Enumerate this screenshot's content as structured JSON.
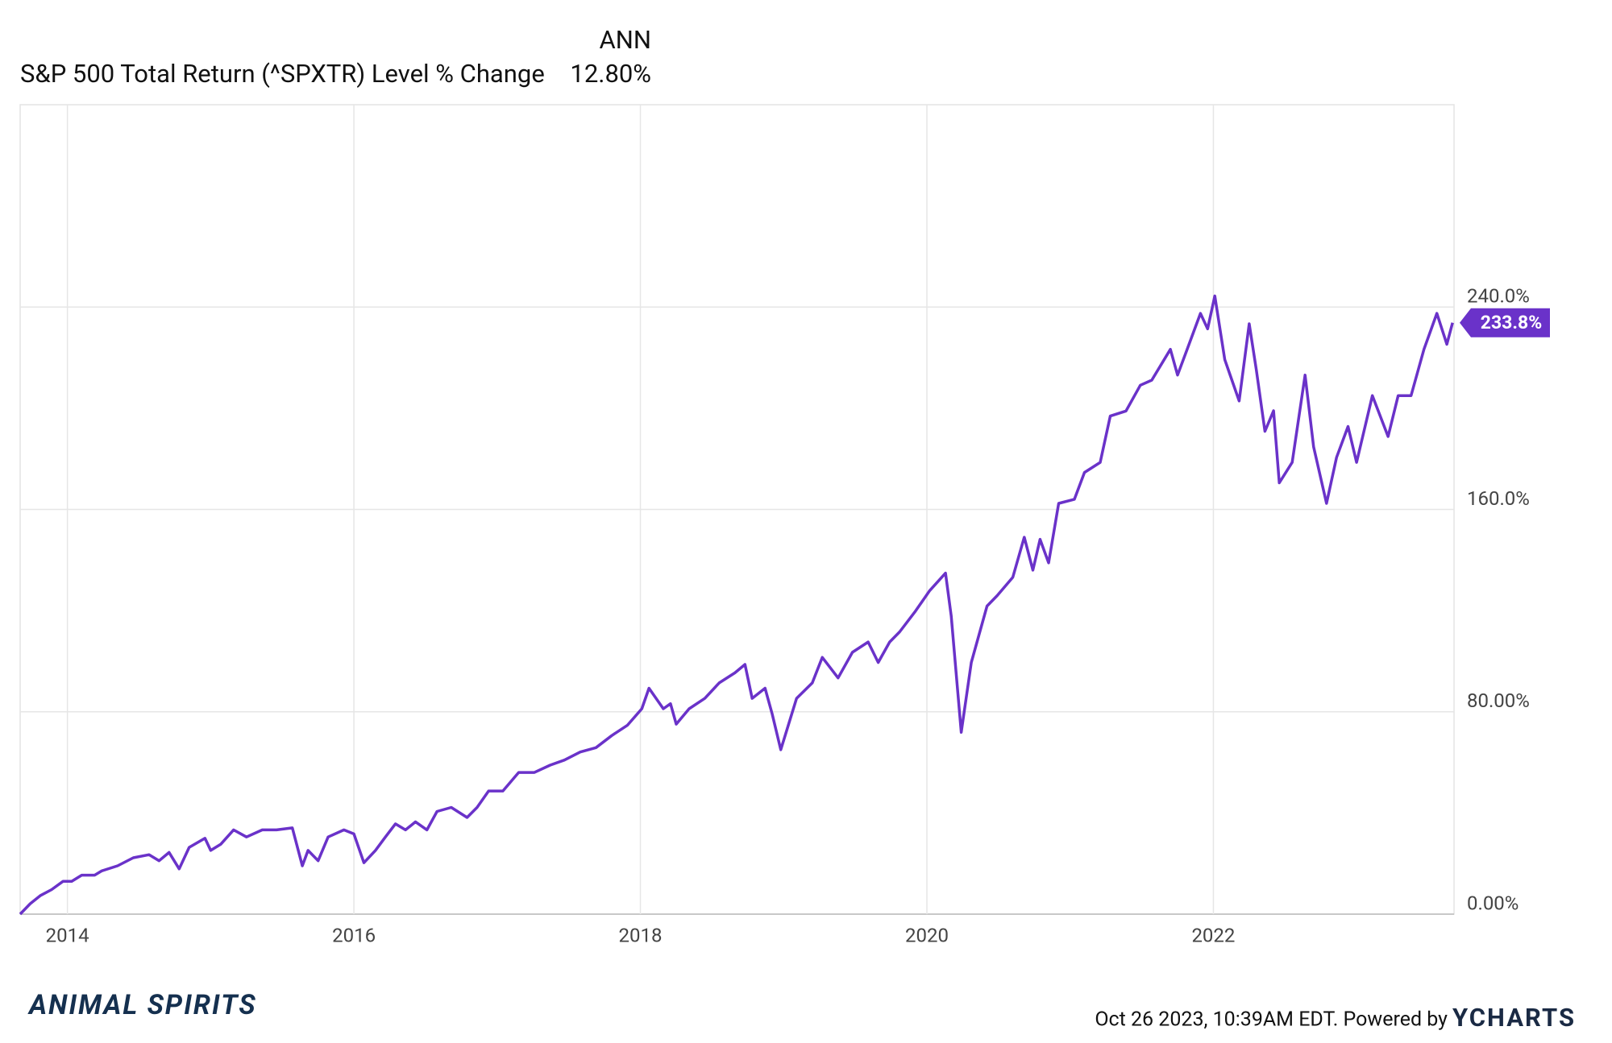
{
  "chart_data": {
    "type": "line",
    "legend_header": "ANN",
    "annualized_label": "12.80%",
    "series": [
      {
        "name": "S&P 500 Total Return (^SPXTR) Level % Change",
        "color": "#6a32c9",
        "values": [
          0,
          4.1,
          7.3,
          9.7,
          13.0,
          13.0,
          15.4,
          15.4,
          17.1,
          19.1,
          22.3,
          23.5,
          21.1,
          24.4,
          17.9,
          26.4,
          30.0,
          25.2,
          27.6,
          33.3,
          30.5,
          33.3,
          33.3,
          34.1,
          19.1,
          25.2,
          21.1,
          30.5,
          33.3,
          31.7,
          20.3,
          25.2,
          30.5,
          35.7,
          33.3,
          36.5,
          33.3,
          40.6,
          42.2,
          38.2,
          42.2,
          48.7,
          48.7,
          56.0,
          56.0,
          58.9,
          60.9,
          64.1,
          65.8,
          70.6,
          74.7,
          81.2,
          89.3,
          81.2,
          83.2,
          75.1,
          81.2,
          85.3,
          91.4,
          95.4,
          98.7,
          85.3,
          89.3,
          79.2,
          65.0,
          85.3,
          91.4,
          101.5,
          93.4,
          103.5,
          107.6,
          99.5,
          107.6,
          111.6,
          119.8,
          127.9,
          134.8,
          117.8,
          71.9,
          99.5,
          121.8,
          125.9,
          133.2,
          149.0,
          136.0,
          148.2,
          138.9,
          162.4,
          164.0,
          174.6,
          178.6,
          196.9,
          198.9,
          209.1,
          211.1,
          223.3,
          213.1,
          223.7,
          237.5,
          231.4,
          244.4,
          219.2,
          202.9,
          233.4,
          215.2,
          190.9,
          199.0,
          170.5,
          178.6,
          213.1,
          184.7,
          162.4,
          180.6,
          192.8,
          178.6,
          205.0,
          188.8,
          205.0,
          205.0,
          223.3,
          237.5,
          225.3,
          233.8
        ]
      }
    ],
    "x": [
      2013.67,
      2013.74,
      2013.81,
      2013.89,
      2013.97,
      2014.03,
      2014.1,
      2014.19,
      2014.24,
      2014.35,
      2014.46,
      2014.57,
      2014.64,
      2014.71,
      2014.78,
      2014.85,
      2014.96,
      2015.0,
      2015.07,
      2015.16,
      2015.25,
      2015.36,
      2015.46,
      2015.57,
      2015.64,
      2015.68,
      2015.75,
      2015.82,
      2015.93,
      2016.0,
      2016.07,
      2016.15,
      2016.22,
      2016.29,
      2016.36,
      2016.43,
      2016.51,
      2016.58,
      2016.68,
      2016.79,
      2016.86,
      2016.94,
      2017.04,
      2017.15,
      2017.26,
      2017.37,
      2017.47,
      2017.58,
      2017.69,
      2017.8,
      2017.91,
      2018.01,
      2018.06,
      2018.16,
      2018.21,
      2018.25,
      2018.34,
      2018.45,
      2018.55,
      2018.66,
      2018.73,
      2018.78,
      2018.87,
      2018.92,
      2018.98,
      2019.09,
      2019.2,
      2019.27,
      2019.38,
      2019.48,
      2019.59,
      2019.66,
      2019.74,
      2019.81,
      2019.92,
      2020.02,
      2020.13,
      2020.17,
      2020.24,
      2020.31,
      2020.42,
      2020.49,
      2020.6,
      2020.68,
      2020.74,
      2020.79,
      2020.85,
      2020.92,
      2021.03,
      2021.1,
      2021.21,
      2021.28,
      2021.39,
      2021.49,
      2021.57,
      2021.7,
      2021.75,
      2021.82,
      2021.91,
      2021.96,
      2022.01,
      2022.08,
      2022.18,
      2022.25,
      2022.3,
      2022.36,
      2022.42,
      2022.46,
      2022.55,
      2022.64,
      2022.7,
      2022.79,
      2022.86,
      2022.94,
      2023.0,
      2023.11,
      2023.22,
      2023.29,
      2023.38,
      2023.47,
      2023.56,
      2023.63,
      2023.67
    ],
    "last_value": 233.8,
    "last_label": "233.8%",
    "xlim": [
      2013.67,
      2023.68
    ],
    "xticks": [
      2014,
      2016,
      2018,
      2020,
      2022
    ],
    "ylim": [
      0,
      320
    ],
    "yticks": [
      {
        "value": 0,
        "label": "0.00%"
      },
      {
        "value": 80,
        "label": "80.00%"
      },
      {
        "value": 160,
        "label": "160.0%"
      },
      {
        "value": 240,
        "label": "240.0%"
      }
    ],
    "grid": true,
    "watermark": "ANIMAL SPIRITS",
    "footer_text": "Oct 26 2023, 10:39AM EDT. Powered by",
    "brand": "YCHARTS"
  }
}
